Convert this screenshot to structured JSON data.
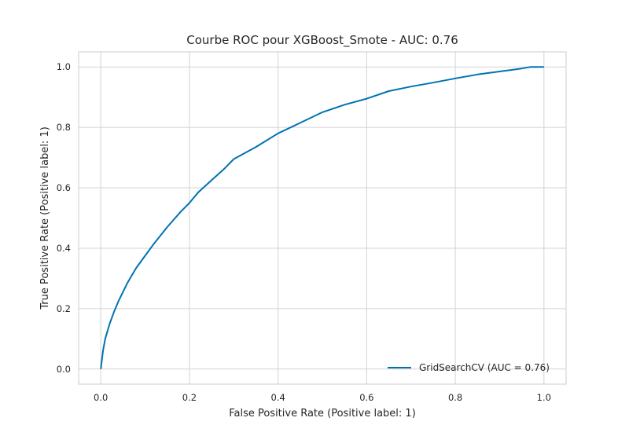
{
  "chart_data": {
    "type": "line",
    "title": "Courbe ROC pour XGBoost_Smote - AUC: 0.76",
    "xlabel": "False Positive Rate (Positive label: 1)",
    "ylabel": "True Positive Rate (Positive label: 1)",
    "xlim": [
      -0.05,
      1.05
    ],
    "ylim": [
      -0.05,
      1.05
    ],
    "xticks": [
      0.0,
      0.2,
      0.4,
      0.6,
      0.8,
      1.0
    ],
    "xtick_labels": [
      "0.0",
      "0.2",
      "0.4",
      "0.6",
      "0.8",
      "1.0"
    ],
    "yticks": [
      0.0,
      0.2,
      0.4,
      0.6,
      0.8,
      1.0
    ],
    "ytick_labels": [
      "0.0",
      "0.2",
      "0.4",
      "0.6",
      "0.8",
      "1.0"
    ],
    "grid": true,
    "legend_position": "bottom-right",
    "series": [
      {
        "name": "GridSearchCV (AUC = 0.76)",
        "color": "#0072B2",
        "x": [
          0.0,
          0.005,
          0.01,
          0.02,
          0.03,
          0.04,
          0.05,
          0.06,
          0.07,
          0.08,
          0.1,
          0.12,
          0.15,
          0.18,
          0.2,
          0.22,
          0.25,
          0.28,
          0.3,
          0.35,
          0.4,
          0.45,
          0.5,
          0.55,
          0.6,
          0.65,
          0.7,
          0.75,
          0.8,
          0.85,
          0.9,
          0.95,
          0.97,
          1.0
        ],
        "y": [
          0.0,
          0.06,
          0.1,
          0.15,
          0.19,
          0.225,
          0.255,
          0.285,
          0.31,
          0.335,
          0.375,
          0.415,
          0.47,
          0.52,
          0.55,
          0.585,
          0.625,
          0.665,
          0.695,
          0.735,
          0.78,
          0.815,
          0.85,
          0.875,
          0.895,
          0.92,
          0.935,
          0.948,
          0.962,
          0.975,
          0.985,
          0.995,
          1.0,
          1.0
        ]
      }
    ]
  }
}
